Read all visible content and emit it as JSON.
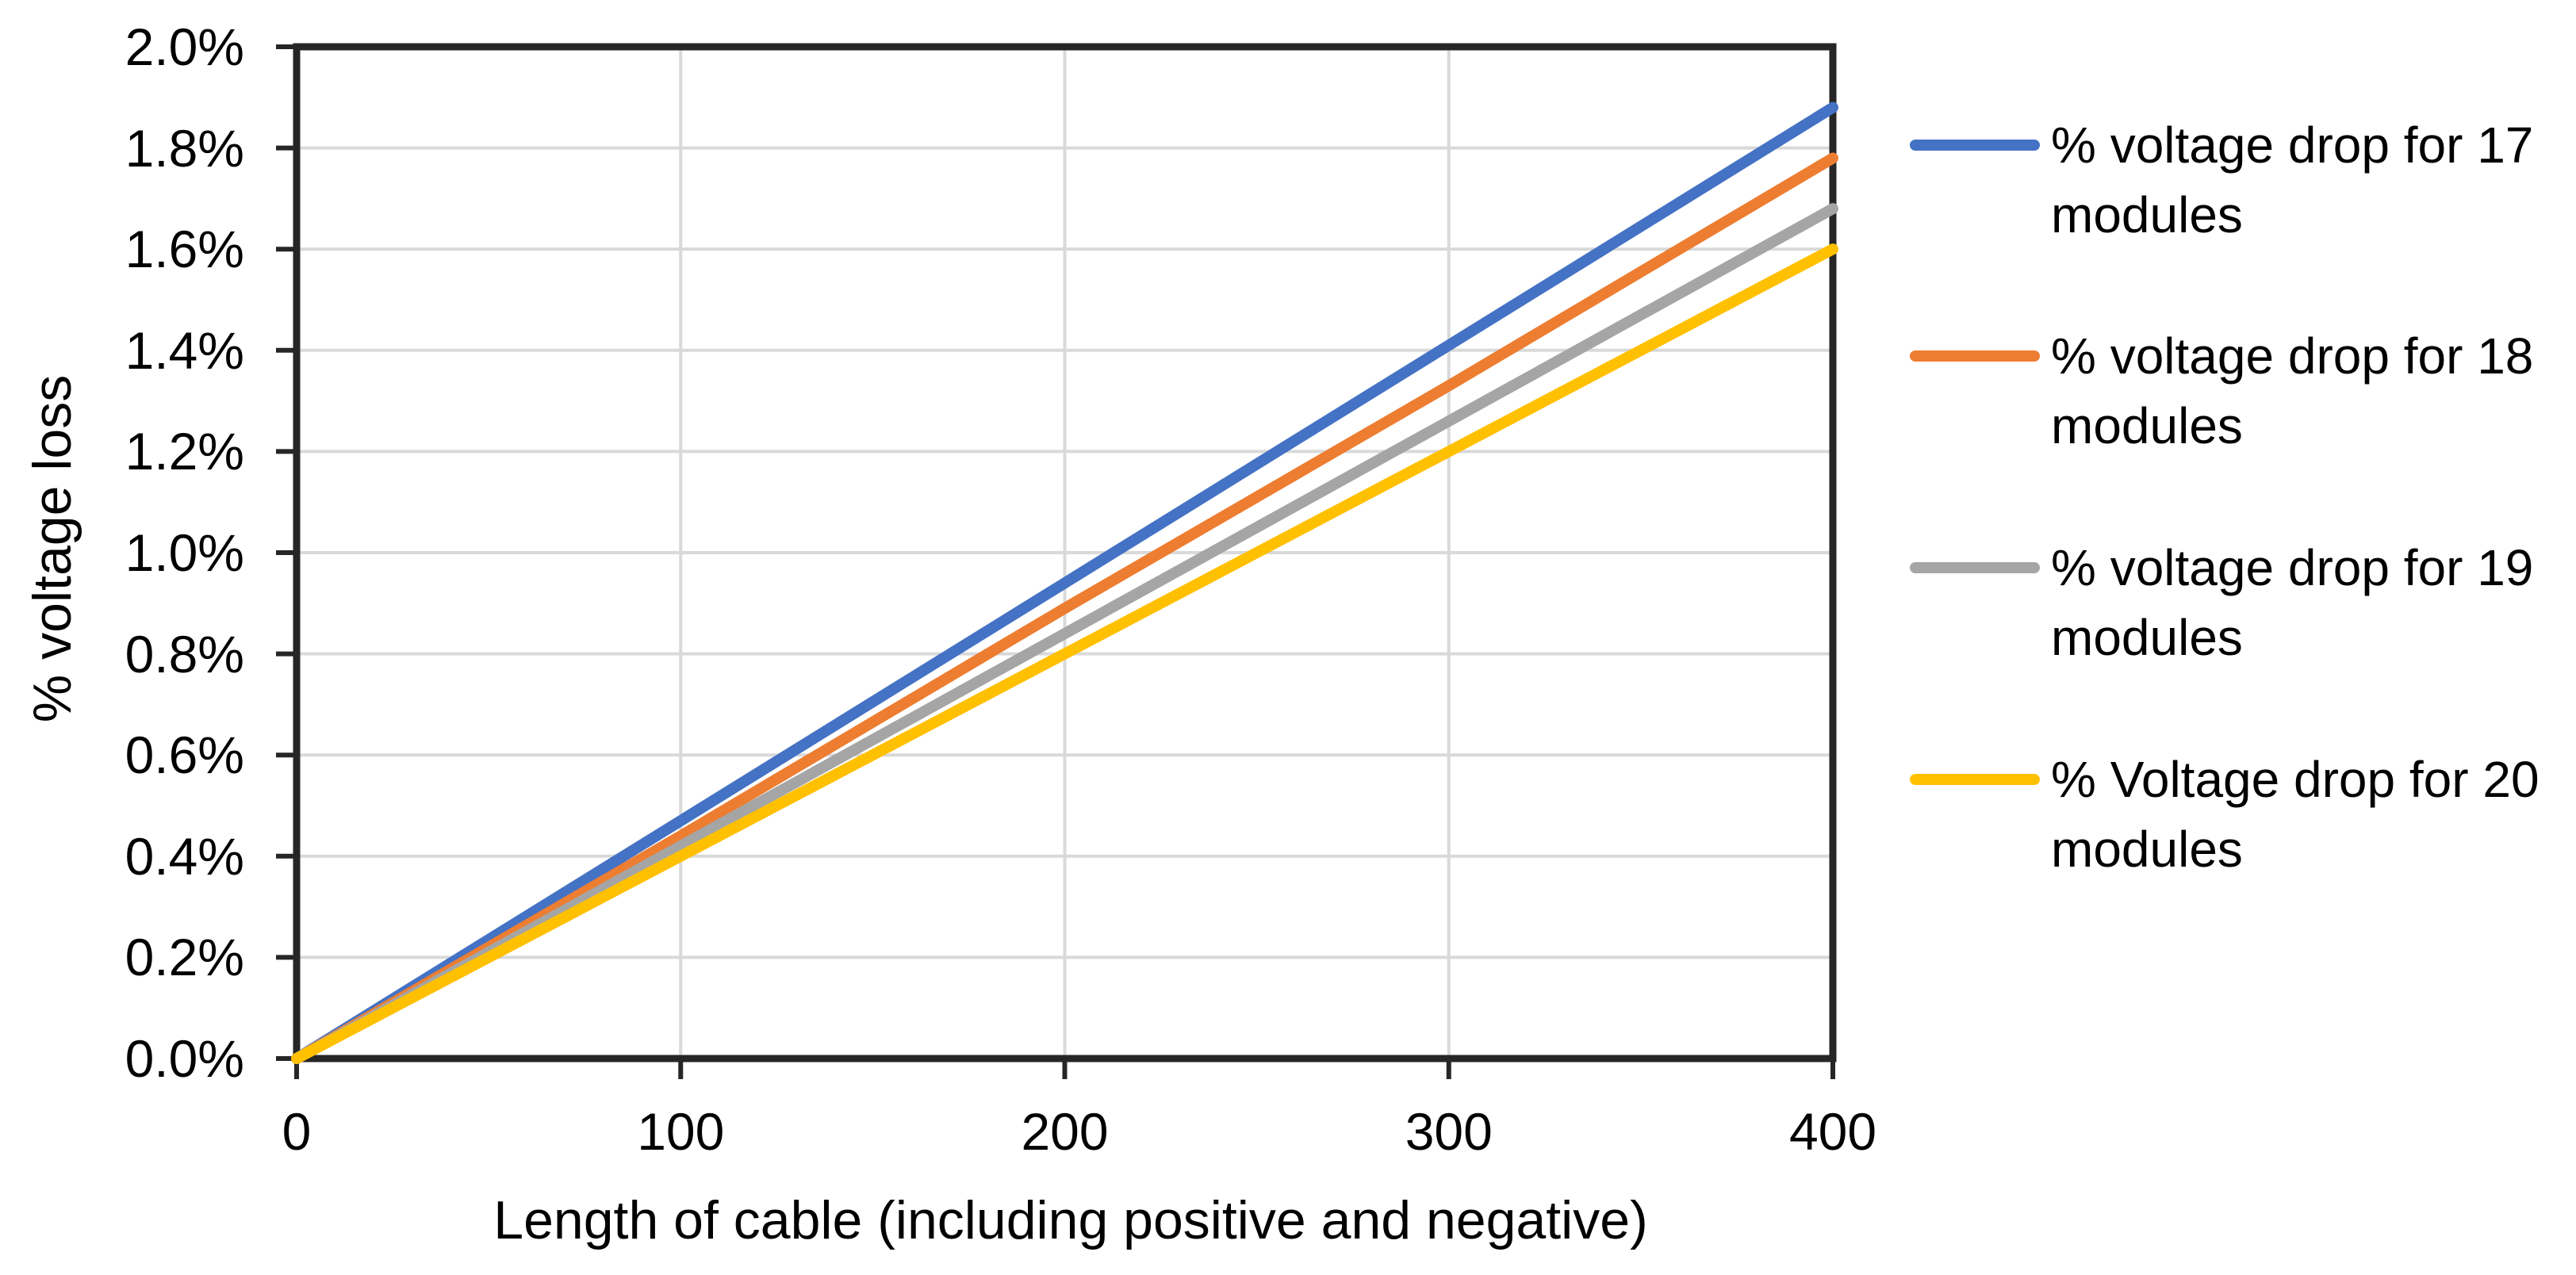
{
  "chart_data": {
    "type": "line",
    "title": "",
    "xlabel": "Length of cable (including positive and negative)",
    "ylabel": "% voltage loss",
    "x": [
      0,
      100,
      200,
      300,
      400
    ],
    "x_tick_labels": [
      "0",
      "100",
      "200",
      "300",
      "400"
    ],
    "y_tick_labels": [
      "0.0%",
      "0.2%",
      "0.4%",
      "0.6%",
      "0.8%",
      "1.0%",
      "1.2%",
      "1.4%",
      "1.6%",
      "1.8%",
      "2.0%"
    ],
    "xlim": [
      0,
      400
    ],
    "ylim_percent": [
      0.0,
      2.0
    ],
    "grid": true,
    "legend_position": "right",
    "colors": {
      "axis": "#262626",
      "gridline": "#D9D9D9",
      "background": "#FFFFFF",
      "text": "#000000"
    },
    "series": [
      {
        "name": "% voltage drop for 17 modules",
        "legend_lines": [
          "% voltage drop for 17",
          "modules"
        ],
        "color": "#4472C4",
        "values_percent": [
          0,
          0.47,
          0.94,
          1.41,
          1.88
        ]
      },
      {
        "name": "% voltage drop for 18 modules",
        "legend_lines": [
          "% voltage drop for 18",
          "modules"
        ],
        "color": "#ED7D31",
        "values_percent": [
          0,
          0.44,
          0.89,
          1.33,
          1.78
        ]
      },
      {
        "name": "% voltage drop for 19 modules",
        "legend_lines": [
          "% voltage drop for 19",
          "modules"
        ],
        "color": "#A5A5A5",
        "values_percent": [
          0,
          0.42,
          0.84,
          1.26,
          1.68
        ]
      },
      {
        "name": "% Voltage drop for 20 modules",
        "legend_lines": [
          "% Voltage drop for 20",
          "modules"
        ],
        "color": "#FFC000",
        "values_percent": [
          0,
          0.4,
          0.8,
          1.2,
          1.6
        ]
      }
    ]
  }
}
